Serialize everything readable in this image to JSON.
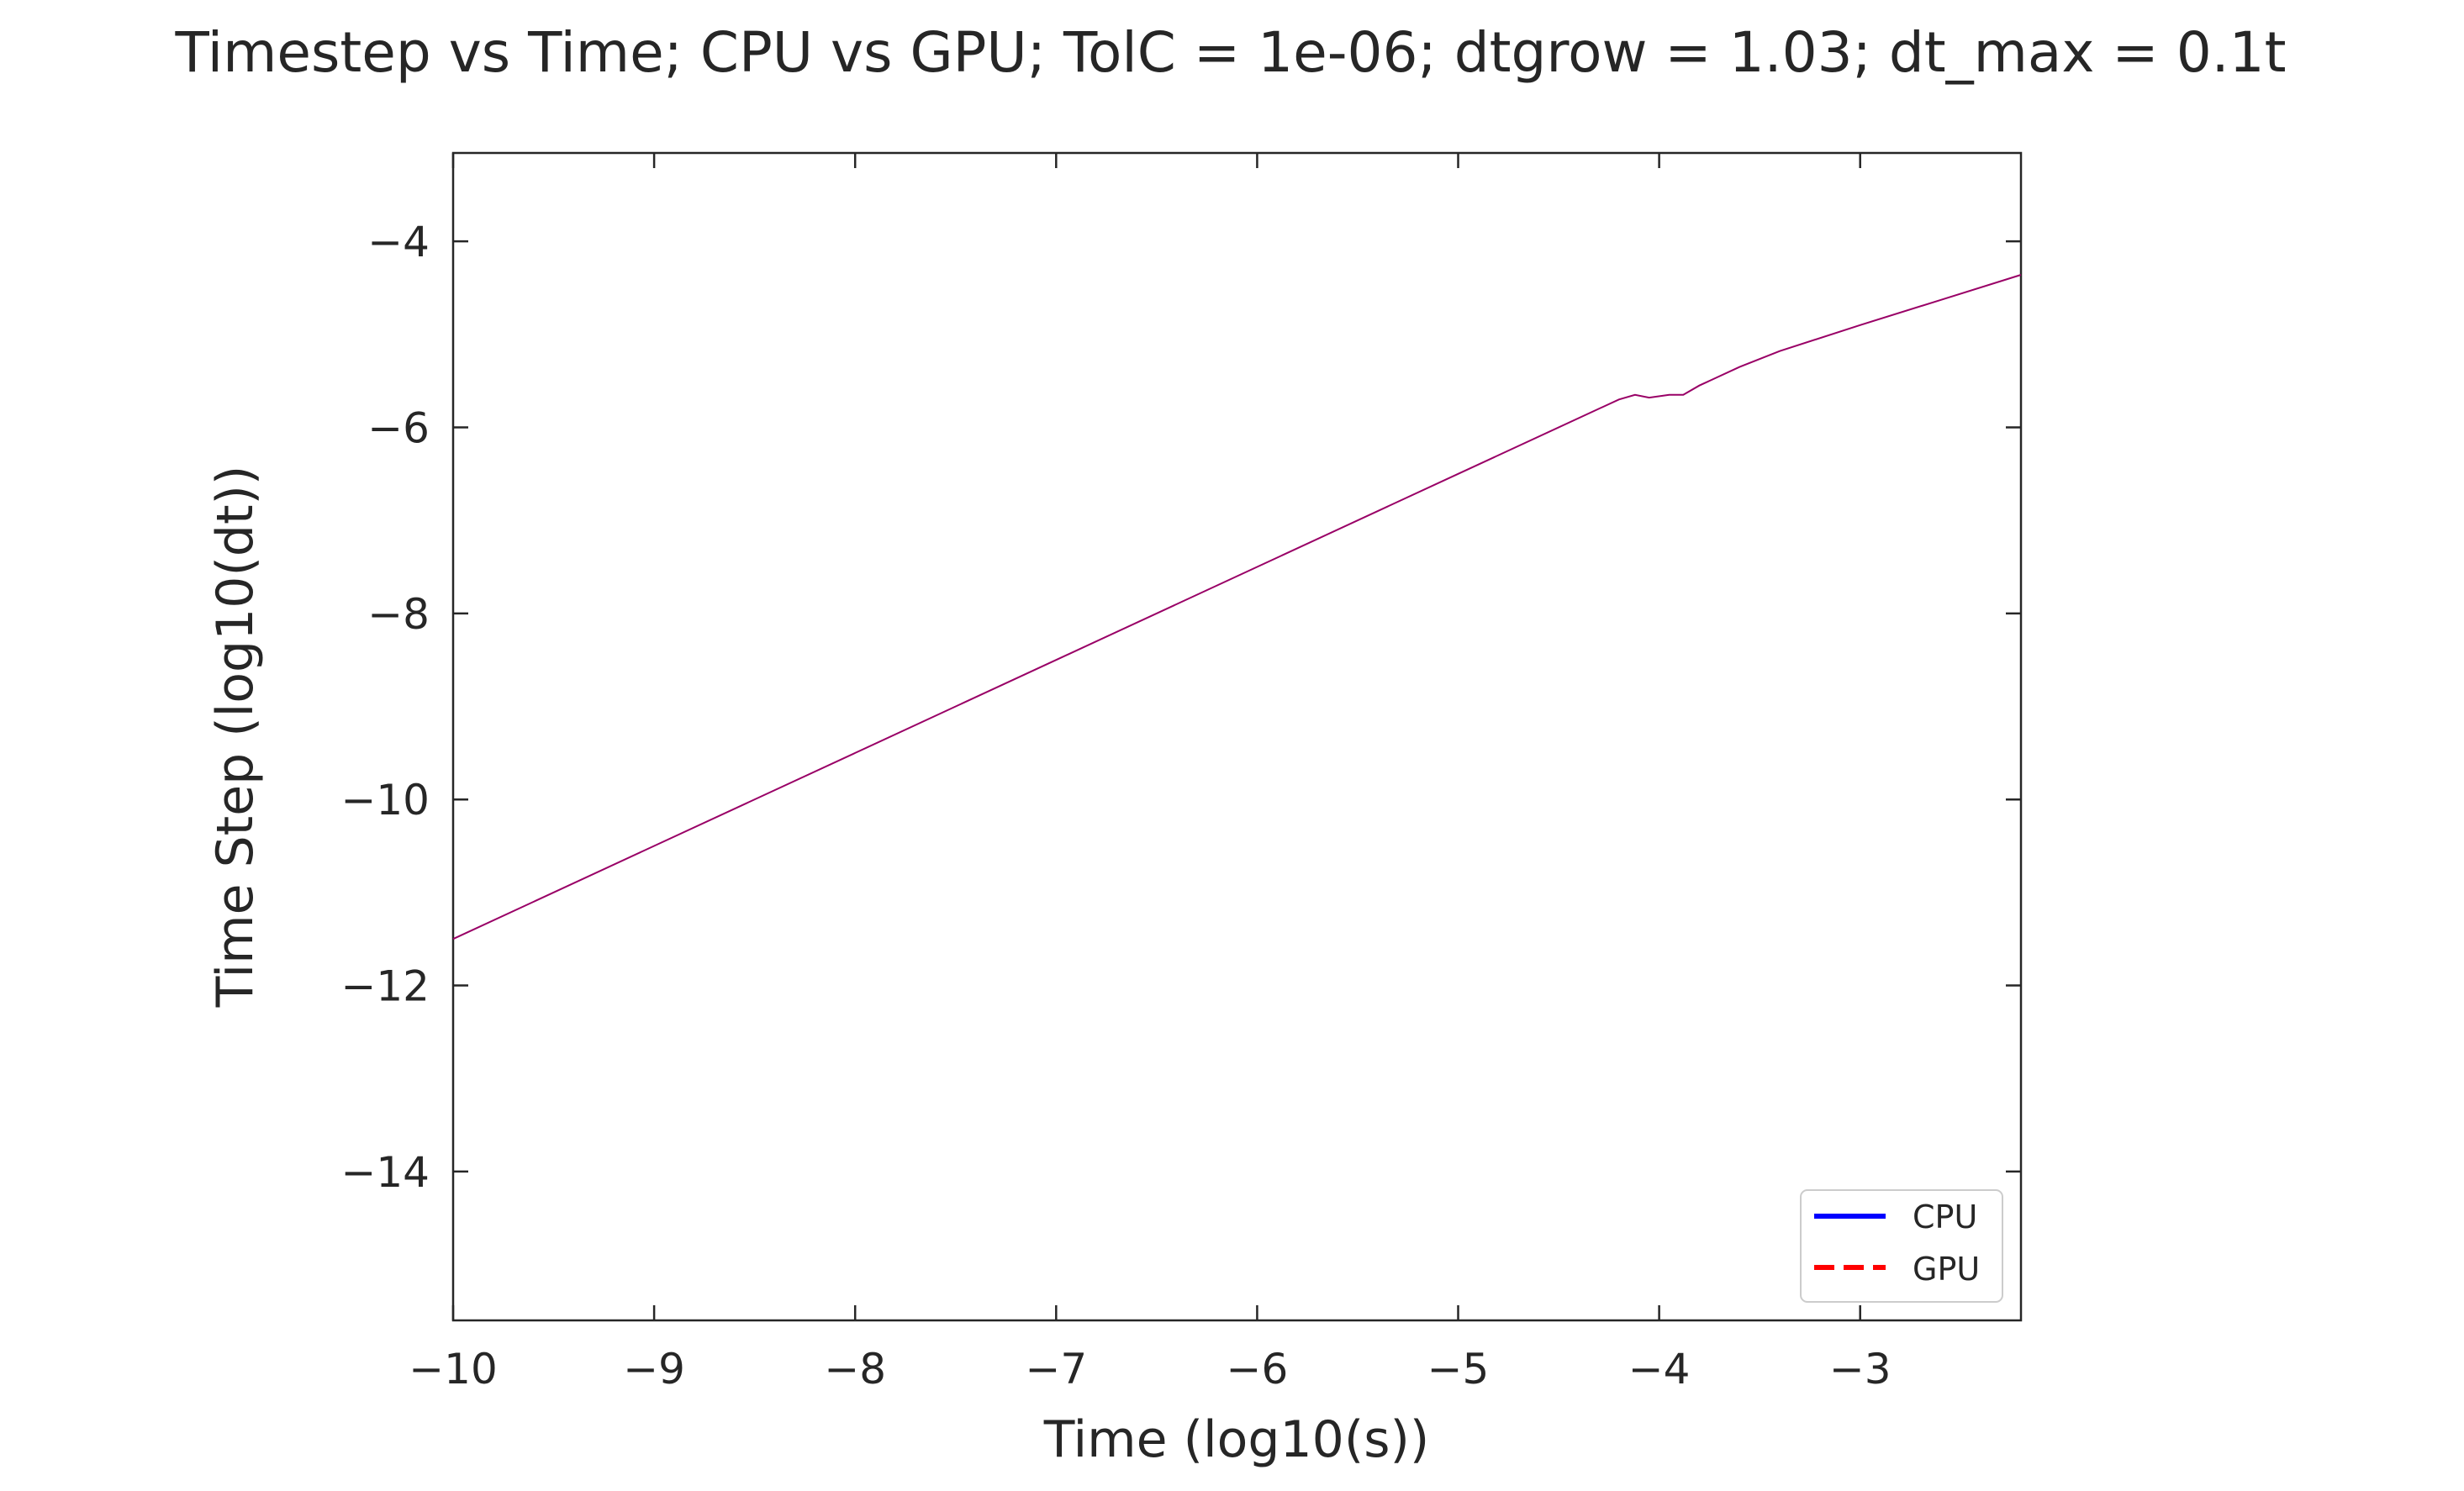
{
  "chart_data": {
    "type": "line",
    "title": "Timestep vs Time; CPU vs GPU; TolC = 1e-06; dtgrow = 1.03; dt_max = 0.1t",
    "xlabel": "Time (log10(s))",
    "ylabel": "Time Step (log10(dt))",
    "xlim": [
      -10,
      -2.2
    ],
    "ylim": [
      -15.6,
      -3.05
    ],
    "xticks": [
      -10,
      -9,
      -8,
      -7,
      -6,
      -5,
      -4,
      -3
    ],
    "yticks": [
      -14,
      -12,
      -10,
      -8,
      -6,
      -4
    ],
    "grid": false,
    "legend_position": "lower-right",
    "series": [
      {
        "name": "CPU",
        "color": "#0000ff",
        "dash": "solid",
        "x": [
          -10,
          -9,
          -8,
          -7,
          -6,
          -5,
          -4.2,
          -4.12,
          -4.05,
          -3.95,
          -3.88,
          -3.8,
          -3.6,
          -3.4,
          -3.0,
          -2.6,
          -2.2
        ],
        "y": [
          -11.5,
          -10.5,
          -9.5,
          -8.5,
          -7.5,
          -6.5,
          -5.7,
          -5.65,
          -5.68,
          -5.65,
          -5.65,
          -5.55,
          -5.35,
          -5.18,
          -4.9,
          -4.63,
          -4.36
        ]
      },
      {
        "name": "GPU",
        "color": "#ff0000",
        "dash": "dashed",
        "x": [
          -10,
          -9,
          -8,
          -7,
          -6,
          -5,
          -4.2,
          -4.12,
          -4.05,
          -3.95,
          -3.88,
          -3.8,
          -3.6,
          -3.4,
          -3.0,
          -2.6,
          -2.2
        ],
        "y": [
          -11.5,
          -10.5,
          -9.5,
          -8.5,
          -7.5,
          -6.5,
          -5.7,
          -5.65,
          -5.68,
          -5.65,
          -5.65,
          -5.55,
          -5.35,
          -5.18,
          -4.9,
          -4.63,
          -4.36
        ]
      }
    ],
    "plotted_line_color": "#990066"
  }
}
